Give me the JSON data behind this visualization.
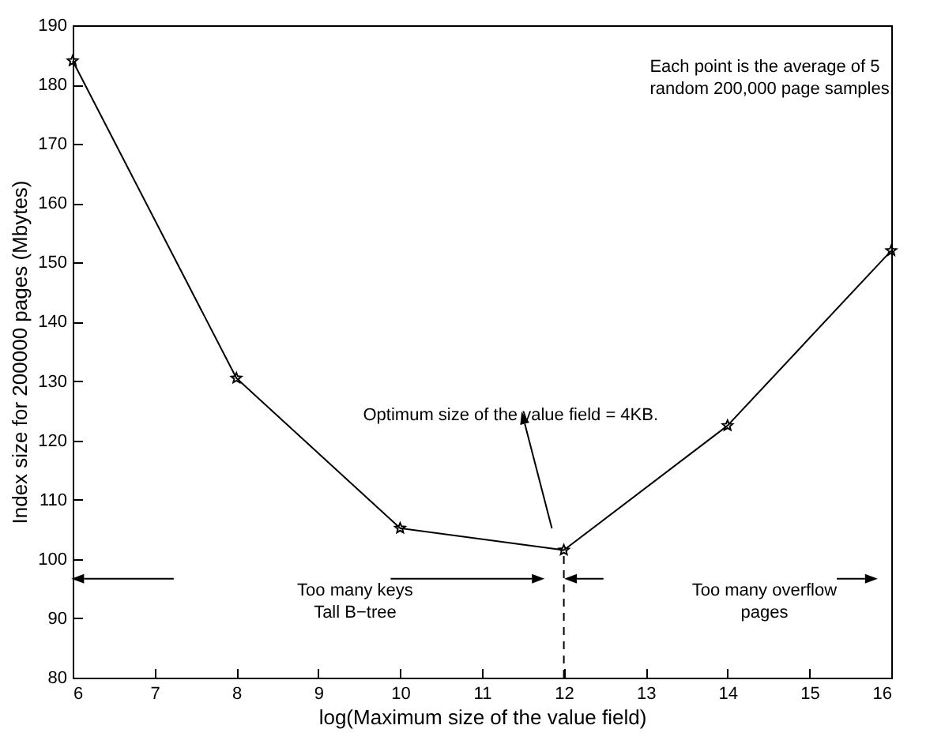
{
  "chart_data": {
    "type": "line",
    "xlabel": "log(Maximum size of the value field)",
    "ylabel": "Index size for 200000 pages (Mbytes)",
    "x": [
      6,
      8,
      10,
      12,
      14,
      16
    ],
    "series": [
      {
        "color": "#000000",
        "values": [
          184,
          130.5,
          105.2,
          101.5,
          122.5,
          152
        ]
      }
    ],
    "marker": "star",
    "xlim": [
      6,
      16
    ],
    "xticks": [
      6,
      7,
      8,
      9,
      10,
      11,
      12,
      13,
      14,
      15,
      16
    ],
    "ylim": [
      80,
      190
    ],
    "yticks": [
      80,
      90,
      100,
      110,
      120,
      130,
      140,
      150,
      160,
      170,
      180,
      190
    ],
    "ref_lines": [
      {
        "axis": "x",
        "value": 12,
        "line_style": "dashed",
        "color": "#000000"
      }
    ],
    "annotations": [
      "Each point is the average of 5\nrandom 200,000 page samples.",
      "Optimum size of the value field = 4KB.",
      "Too many keys\nTall B−tree",
      "Too many overflow\npages"
    ]
  }
}
